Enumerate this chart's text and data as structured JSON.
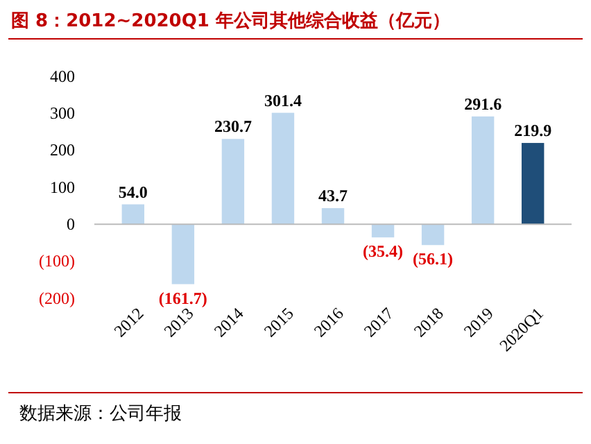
{
  "chart_data": {
    "type": "bar",
    "title": "图 8：2012~2020Q1 年公司其他综合收益（亿元）",
    "categories": [
      "2012",
      "2013",
      "2014",
      "2015",
      "2016",
      "2017",
      "2018",
      "2019",
      "2020Q1"
    ],
    "values": [
      54.0,
      -161.7,
      230.7,
      301.4,
      43.7,
      -35.4,
      -56.1,
      291.6,
      219.9
    ],
    "colors": [
      "#bdd7ee",
      "#bdd7ee",
      "#bdd7ee",
      "#bdd7ee",
      "#bdd7ee",
      "#bdd7ee",
      "#bdd7ee",
      "#bdd7ee",
      "#1f4e79"
    ],
    "value_labels": [
      "54.0",
      "(161.7)",
      "230.7",
      "301.4",
      "43.7",
      "(35.4)",
      "(56.1)",
      "291.6",
      "219.9"
    ],
    "ylim": [
      -200,
      400
    ],
    "yticks": [
      {
        "value": -200,
        "label": "(200)"
      },
      {
        "value": -100,
        "label": "(100)"
      },
      0,
      100,
      200,
      300,
      400
    ],
    "annotations": [
      "数据来源：公司年报"
    ]
  }
}
